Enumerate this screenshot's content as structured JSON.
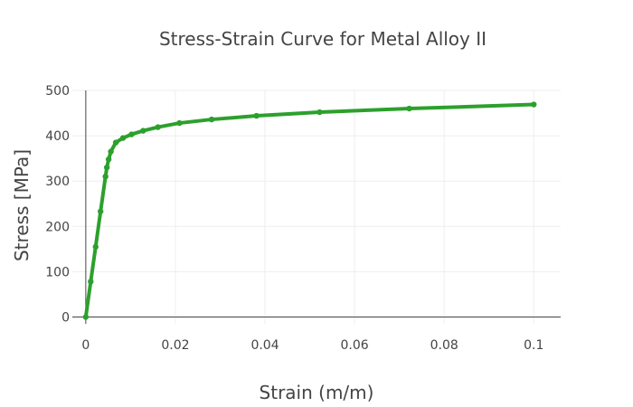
{
  "chart_data": {
    "type": "line",
    "title": "Stress-Strain Curve for Metal Alloy II",
    "xlabel": "Strain (m/m)",
    "ylabel": "Stress [MPa]",
    "xlim": [
      -0.003,
      0.106
    ],
    "ylim": [
      -15,
      500
    ],
    "x_ticks": [
      0,
      0.02,
      0.04,
      0.06,
      0.08,
      0.1
    ],
    "x_tick_labels": [
      "0",
      "0.02",
      "0.04",
      "0.06",
      "0.08",
      "0.1"
    ],
    "y_ticks": [
      0,
      100,
      200,
      300,
      400,
      500
    ],
    "y_tick_labels": [
      "0",
      "100",
      "200",
      "300",
      "400",
      "500"
    ],
    "grid": true,
    "legend": false,
    "line_color": "#2ca02c",
    "series": [
      {
        "x": [
          0,
          0.0011,
          0.0022,
          0.0033,
          0.0044,
          0.0047,
          0.0051,
          0.0056,
          0.0067,
          0.0083,
          0.0102,
          0.0128,
          0.0161,
          0.0209,
          0.0281,
          0.0381,
          0.0522,
          0.0722,
          0.1
        ],
        "y": [
          0,
          78,
          155,
          233,
          310,
          330,
          348,
          365,
          385,
          395,
          403,
          411,
          419,
          428,
          436,
          444,
          452,
          460,
          469
        ]
      }
    ]
  }
}
